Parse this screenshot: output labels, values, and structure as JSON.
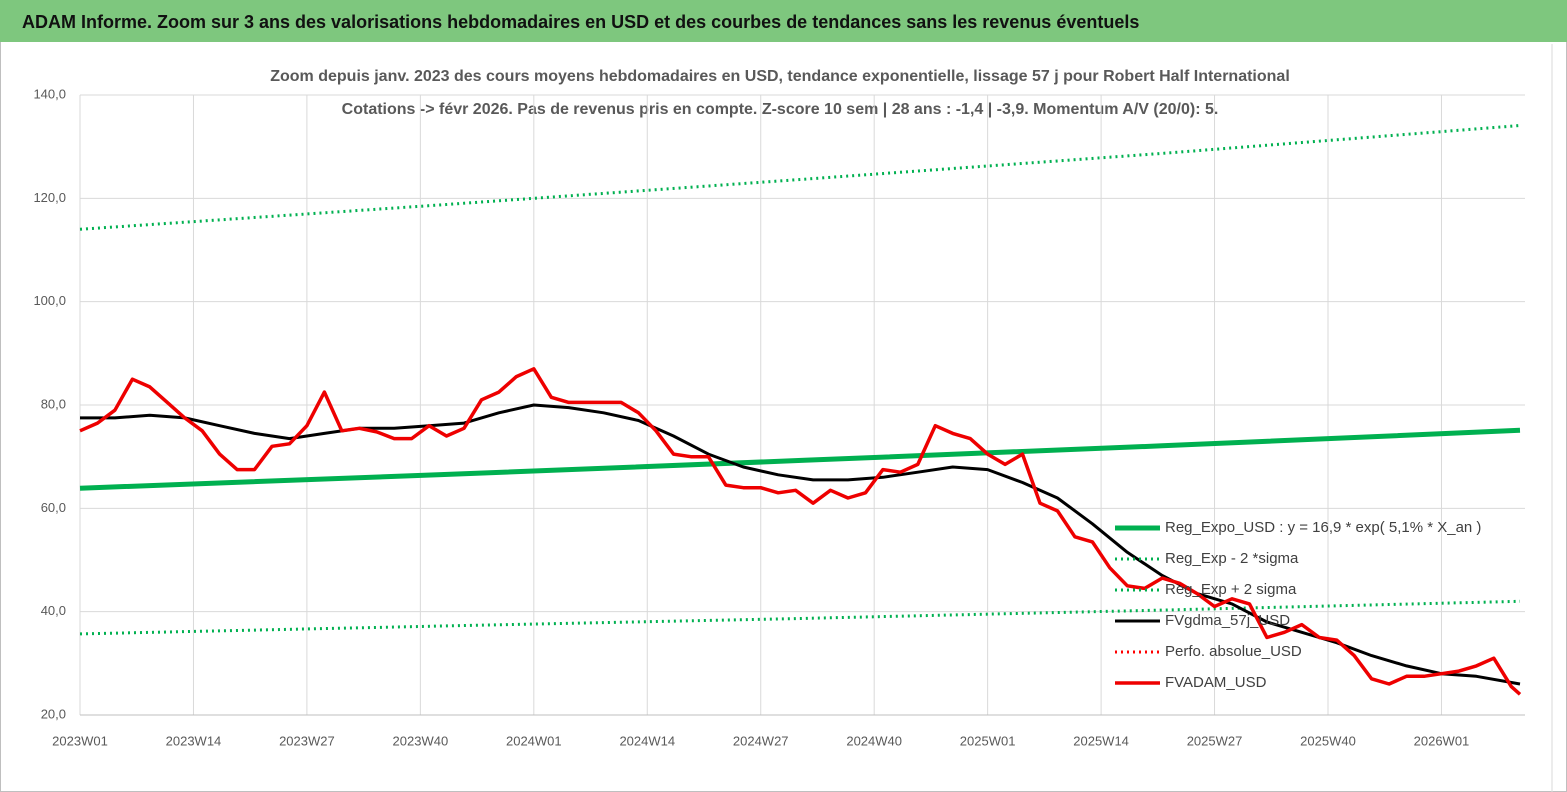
{
  "header": {
    "title": "ADAM Informe. Zoom sur 3 ans des valorisations hebdomadaires en USD et des courbes de tendances sans les revenus éventuels"
  },
  "chart_data": {
    "type": "line",
    "title": "Zoom depuis janv.  2023 des cours moyens  hebdomadaires en USD, tendance exponentielle, lissage 57  j pour Robert Half International",
    "subtitle": "Cotations -> févr 2026.  Pas de revenus pris en compte. Z-score 10 sem  | 28 ans : -1,4  | -3,9. Momentum A/V (20/0): 5.",
    "xlim": [
      0,
      165
    ],
    "xticks": [
      {
        "value": 0,
        "label": "2023W01"
      },
      {
        "value": 13,
        "label": "2023W14"
      },
      {
        "value": 26,
        "label": "2023W27"
      },
      {
        "value": 39,
        "label": "2023W40"
      },
      {
        "value": 52,
        "label": "2024W01"
      },
      {
        "value": 65,
        "label": "2024W14"
      },
      {
        "value": 78,
        "label": "2024W27"
      },
      {
        "value": 91,
        "label": "2024W40"
      },
      {
        "value": 104,
        "label": "2025W01"
      },
      {
        "value": 117,
        "label": "2025W14"
      },
      {
        "value": 130,
        "label": "2025W27"
      },
      {
        "value": 143,
        "label": "2025W40"
      },
      {
        "value": 156,
        "label": "2026W01"
      }
    ],
    "ylim": [
      20,
      140
    ],
    "yticks": [
      {
        "value": 20,
        "label": "20,0"
      },
      {
        "value": 40,
        "label": "40,0"
      },
      {
        "value": 60,
        "label": "60,0"
      },
      {
        "value": 80,
        "label": "80,0"
      },
      {
        "value": 100,
        "label": "100,0"
      },
      {
        "value": 120,
        "label": "120,0"
      },
      {
        "value": 140,
        "label": "140,0"
      }
    ],
    "grid": true,
    "legend": "lower right",
    "series": [
      {
        "name": "Reg_Expo_USD : y = 16,9 * exp( 5,1% *  X_an )",
        "color": "#00b050",
        "style": "solid",
        "width": 5,
        "x": [
          0,
          41,
          83,
          124,
          165
        ],
        "values": [
          63.9,
          66.5,
          69.3,
          72.1,
          75.1
        ]
      },
      {
        "name": "Reg_Exp - 2 *sigma",
        "color": "#00b050",
        "style": "dotted",
        "width": 3,
        "x": [
          0,
          41,
          83,
          124,
          165
        ],
        "values": [
          35.7,
          37.2,
          38.7,
          40.3,
          42.0
        ]
      },
      {
        "name": "Reg_Exp + 2 sigma",
        "color": "#00b050",
        "style": "dotted",
        "width": 3,
        "x": [
          0,
          41,
          83,
          124,
          165
        ],
        "values": [
          114.0,
          118.7,
          123.7,
          128.7,
          134.1
        ]
      },
      {
        "name": "FVgdma_57j_USD",
        "color": "#000000",
        "style": "solid",
        "width": 3,
        "x": [
          0,
          4,
          8,
          12,
          16,
          20,
          24,
          28,
          32,
          36,
          40,
          44,
          48,
          52,
          56,
          60,
          64,
          68,
          72,
          76,
          80,
          84,
          88,
          92,
          96,
          100,
          104,
          108,
          112,
          116,
          120,
          124,
          128,
          132,
          136,
          140,
          144,
          148,
          152,
          156,
          160,
          165
        ],
        "values": [
          77.5,
          77.5,
          78,
          77.5,
          76,
          74.5,
          73.5,
          74.5,
          75.5,
          75.5,
          76,
          76.5,
          78.5,
          80,
          79.5,
          78.5,
          77,
          74,
          70.5,
          68,
          66.5,
          65.5,
          65.5,
          66,
          67,
          68,
          67.5,
          65,
          62,
          57,
          51.5,
          47,
          43.5,
          41.5,
          38,
          36,
          34,
          31.5,
          29.5,
          28,
          27.5,
          26
        ]
      },
      {
        "name": "Perfo. absolue_USD",
        "color": "#ff0000",
        "style": "dotted",
        "width": 3,
        "x": [],
        "values": []
      },
      {
        "name": "FVADAM_USD",
        "color": "#ee0000",
        "style": "solid",
        "width": 3.5,
        "x": [
          0,
          2,
          4,
          6,
          8,
          10,
          12,
          14,
          16,
          18,
          20,
          22,
          24,
          26,
          28,
          30,
          32,
          34,
          36,
          38,
          40,
          42,
          44,
          46,
          48,
          50,
          52,
          54,
          56,
          58,
          60,
          62,
          64,
          66,
          68,
          70,
          72,
          74,
          76,
          78,
          80,
          82,
          84,
          86,
          88,
          90,
          92,
          94,
          96,
          98,
          100,
          102,
          104,
          106,
          108,
          110,
          112,
          114,
          116,
          118,
          120,
          122,
          124,
          126,
          128,
          130,
          132,
          134,
          136,
          138,
          140,
          142,
          144,
          146,
          148,
          150,
          152,
          154,
          156,
          158,
          160,
          162,
          164,
          165
        ],
        "values": [
          75,
          76.5,
          79,
          85,
          83.5,
          80.5,
          77.5,
          75,
          70.5,
          67.5,
          67.5,
          72,
          72.5,
          76,
          82.5,
          75,
          75.5,
          74.8,
          73.5,
          73.5,
          76,
          74,
          75.5,
          81,
          82.5,
          85.5,
          87,
          81.5,
          80.5,
          80.5,
          80.5,
          80.5,
          78.5,
          75,
          70.5,
          70,
          70,
          64.5,
          64,
          64,
          63,
          63.5,
          61,
          63.5,
          62,
          63,
          67.5,
          67,
          68.5,
          76,
          74.5,
          73.5,
          70.5,
          68.5,
          70.5,
          61,
          59.5,
          54.5,
          53.5,
          48.5,
          45,
          44.5,
          46.5,
          45.5,
          43.5,
          41,
          42.5,
          41.5,
          35,
          36,
          37.5,
          35,
          34.5,
          31.5,
          27,
          26,
          27.5,
          27.5,
          28,
          28.5,
          29.5,
          31,
          25.5,
          24
        ]
      }
    ]
  }
}
